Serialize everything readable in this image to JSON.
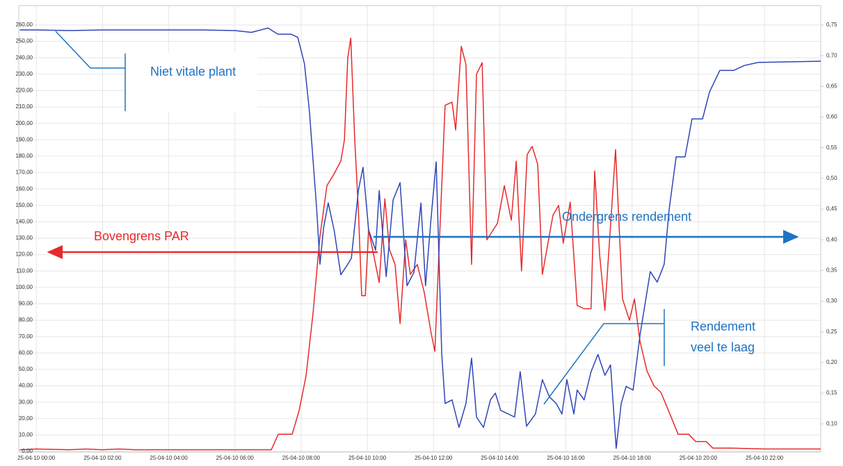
{
  "chart_data": {
    "type": "line",
    "xlim": [
      -0.53,
      23.7
    ],
    "xticks": [
      {
        "value": 0,
        "label": "25-04-10 00:00"
      },
      {
        "value": 2,
        "label": "25-04-10 02:00"
      },
      {
        "value": 4,
        "label": "25-04-10 04:00"
      },
      {
        "value": 6,
        "label": "25-04-10 06:00"
      },
      {
        "value": 8,
        "label": "25-04-10 08:00"
      },
      {
        "value": 10,
        "label": "25-04-10 10:00"
      },
      {
        "value": 12,
        "label": "25-04-10 12:00"
      },
      {
        "value": 14,
        "label": "25-04-10 14:00"
      },
      {
        "value": 16,
        "label": "25-04-10 16:00"
      },
      {
        "value": 18,
        "label": "25-04-10 18:00"
      },
      {
        "value": 20,
        "label": "25-04-10 20:00"
      },
      {
        "value": 22,
        "label": "25-04-10 22:00"
      }
    ],
    "ylim": [
      0,
      260
    ],
    "yticks": [
      {
        "value": 0,
        "label": "0,00"
      },
      {
        "value": 10,
        "label": "10,00"
      },
      {
        "value": 20,
        "label": "20,00"
      },
      {
        "value": 30,
        "label": "30,00"
      },
      {
        "value": 40,
        "label": "40,00"
      },
      {
        "value": 50,
        "label": "50,00"
      },
      {
        "value": 60,
        "label": "60,00"
      },
      {
        "value": 70,
        "label": "70,00"
      },
      {
        "value": 80,
        "label": "80,00"
      },
      {
        "value": 90,
        "label": "90,00"
      },
      {
        "value": 100,
        "label": "100,00"
      },
      {
        "value": 110,
        "label": "110,00"
      },
      {
        "value": 120,
        "label": "120,00"
      },
      {
        "value": 130,
        "label": "130,00"
      },
      {
        "value": 140,
        "label": "140,00"
      },
      {
        "value": 150,
        "label": "150,00"
      },
      {
        "value": 160,
        "label": "160,00"
      },
      {
        "value": 170,
        "label": "170,00"
      },
      {
        "value": 180,
        "label": "180,00"
      },
      {
        "value": 190,
        "label": "190,00"
      },
      {
        "value": 200,
        "label": "200,00"
      },
      {
        "value": 210,
        "label": "210,00"
      },
      {
        "value": 220,
        "label": "220,00"
      },
      {
        "value": 230,
        "label": "230,00"
      },
      {
        "value": 240,
        "label": "240,00"
      },
      {
        "value": 250,
        "label": "250,00"
      },
      {
        "value": 260,
        "label": "260,00"
      }
    ],
    "y2lim": [
      0.055,
      0.75
    ],
    "y2ticks": [
      {
        "value": 0.1,
        "label": "0,10"
      },
      {
        "value": 0.15,
        "label": "0,15"
      },
      {
        "value": 0.2,
        "label": "0,20"
      },
      {
        "value": 0.25,
        "label": "0,25"
      },
      {
        "value": 0.3,
        "label": "0,30"
      },
      {
        "value": 0.35,
        "label": "0,35"
      },
      {
        "value": 0.4,
        "label": "0,40"
      },
      {
        "value": 0.45,
        "label": "0,45"
      },
      {
        "value": 0.5,
        "label": "0,50"
      },
      {
        "value": 0.55,
        "label": "0,55"
      },
      {
        "value": 0.6,
        "label": "0,60"
      },
      {
        "value": 0.65,
        "label": "0,65"
      },
      {
        "value": 0.7,
        "label": "0,70"
      },
      {
        "value": 0.75,
        "label": "0,75"
      }
    ],
    "grid": true,
    "series": [
      {
        "color": "#e8292b",
        "axis": "y",
        "x": [
          -0.5,
          0,
          1,
          1.5,
          2,
          2.5,
          3,
          4,
          5,
          6,
          7.1,
          7.31,
          7.73,
          7.94,
          8.15,
          8.36,
          8.57,
          8.78,
          8.99,
          9.2,
          9.31,
          9.41,
          9.5,
          9.62,
          9.73,
          9.83,
          9.94,
          10.04,
          10.36,
          10.53,
          10.67,
          10.84,
          10.99,
          11.16,
          11.3,
          11.51,
          11.72,
          11.93,
          12.04,
          12.35,
          12.56,
          12.67,
          12.84,
          12.98,
          13.15,
          13.3,
          13.47,
          13.61,
          13.93,
          14.14,
          14.35,
          14.5,
          14.66,
          14.83,
          14.98,
          15.15,
          15.29,
          15.61,
          15.78,
          15.92,
          16.13,
          16.34,
          16.55,
          16.76,
          16.87,
          17.02,
          17.18,
          17.5,
          17.71,
          17.92,
          18.07,
          18.24,
          18.45,
          18.66,
          18.87,
          19.18,
          19.39,
          19.71,
          19.92,
          20.24,
          20.44,
          21,
          22,
          23,
          23.7
        ],
        "values": [
          1,
          1.5,
          1,
          1.5,
          1,
          1.5,
          1,
          1,
          1,
          1,
          1,
          10.5,
          10.5,
          25,
          46,
          84,
          131,
          162,
          169,
          177,
          190,
          240,
          252,
          190,
          148,
          95,
          95,
          135,
          103,
          154,
          123,
          114,
          78,
          129,
          108,
          114,
          97,
          72,
          61,
          211,
          213,
          196,
          247,
          236,
          114,
          230,
          237,
          129,
          139,
          162,
          141,
          177,
          110,
          181,
          186,
          175,
          108,
          144,
          150,
          127,
          152,
          89,
          87,
          87,
          171,
          120,
          86,
          184,
          93,
          80,
          93,
          67,
          49,
          40,
          36,
          21,
          10.5,
          10.5,
          6,
          6,
          2,
          2,
          1.5,
          1.5,
          1.5
        ]
      },
      {
        "color": "#2e45b8",
        "axis": "y2",
        "x": [
          -0.5,
          0,
          1,
          2,
          3,
          4,
          5,
          6,
          6.5,
          7.0,
          7.3,
          7.7,
          7.9,
          8.1,
          8.25,
          8.47,
          8.57,
          8.68,
          8.82,
          9.0,
          9.2,
          9.41,
          9.52,
          9.73,
          9.87,
          10.04,
          10.25,
          10.36,
          10.57,
          10.78,
          10.99,
          11.2,
          11.41,
          11.62,
          11.76,
          11.93,
          12.08,
          12.25,
          12.35,
          12.56,
          12.77,
          12.98,
          13.15,
          13.3,
          13.51,
          13.72,
          13.87,
          14.03,
          14.45,
          14.62,
          14.81,
          15.08,
          15.29,
          15.5,
          15.71,
          15.88,
          16.03,
          16.24,
          16.34,
          16.55,
          16.76,
          16.97,
          17.18,
          17.35,
          17.52,
          17.67,
          17.82,
          18.03,
          18.24,
          18.55,
          18.76,
          18.97,
          19.12,
          19.33,
          19.6,
          19.81,
          20.13,
          20.34,
          20.65,
          21.07,
          21.39,
          21.81,
          23.7
        ],
        "values": [
          0.742,
          0.742,
          0.741,
          0.742,
          0.742,
          0.742,
          0.742,
          0.741,
          0.738,
          0.745,
          0.735,
          0.735,
          0.73,
          0.687,
          0.61,
          0.45,
          0.36,
          0.42,
          0.46,
          0.415,
          0.343,
          0.36,
          0.37,
          0.48,
          0.518,
          0.416,
          0.383,
          0.48,
          0.34,
          0.465,
          0.493,
          0.325,
          0.347,
          0.46,
          0.325,
          0.437,
          0.527,
          0.214,
          0.133,
          0.139,
          0.094,
          0.133,
          0.207,
          0.111,
          0.094,
          0.139,
          0.15,
          0.122,
          0.111,
          0.185,
          0.096,
          0.116,
          0.172,
          0.144,
          0.133,
          0.116,
          0.172,
          0.116,
          0.155,
          0.139,
          0.185,
          0.213,
          0.179,
          0.196,
          0.06,
          0.133,
          0.161,
          0.155,
          0.245,
          0.348,
          0.331,
          0.36,
          0.45,
          0.535,
          0.535,
          0.597,
          0.597,
          0.641,
          0.676,
          0.676,
          0.684,
          0.689,
          0.691
        ]
      }
    ],
    "annotations": [
      "Niet vitale plant",
      "Bovengrens PAR",
      "Ondergrens rendement",
      "Rendement veel te laag"
    ]
  }
}
